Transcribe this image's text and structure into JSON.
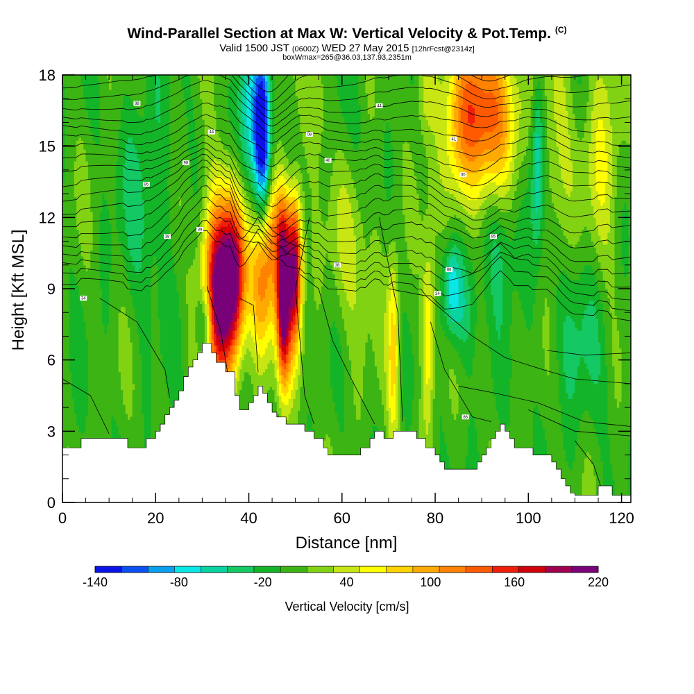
{
  "header": {
    "title": "Wind-Parallel Section at Max W: Vertical Velocity & Pot.Temp.",
    "copyright": "(C)",
    "subtitle_main": "Valid 1500 JST",
    "subtitle_z": "(0600Z)",
    "subtitle_date": "WED 27 May 2015",
    "subtitle_fcst": "[12hrFcst@2314z]",
    "subtitle2": "boxWmax=265@36.03,137.93,2351m"
  },
  "chart_data": {
    "type": "heatmap",
    "title": "Wind-Parallel Section at Max W: Vertical Velocity & Pot.Temp.",
    "xlabel": "Distance [nm]",
    "ylabel": "Height [Kft MSL]",
    "xlim": [
      0,
      122
    ],
    "ylim": [
      0,
      18
    ],
    "x_ticks": [
      0,
      20,
      40,
      60,
      80,
      100,
      120
    ],
    "y_ticks": [
      0,
      3,
      6,
      9,
      12,
      15,
      18
    ],
    "colorbar": {
      "label": "Vertical Velocity [cm/s]",
      "min": -140,
      "max": 220,
      "step": 20,
      "tick_labels": [
        -140,
        -80,
        -20,
        40,
        100,
        160,
        220
      ],
      "colors": [
        "#0a14e8",
        "#0a50f0",
        "#0aa0f0",
        "#0ae6e6",
        "#0ad2a0",
        "#14c864",
        "#14b428",
        "#3cb414",
        "#82d214",
        "#c8e614",
        "#ffff00",
        "#ffd200",
        "#ffaa00",
        "#ff8200",
        "#ff5a00",
        "#f01e0a",
        "#d2000a",
        "#a00050",
        "#780078"
      ]
    },
    "terrain": [
      [
        0,
        2.3
      ],
      [
        4,
        2.3
      ],
      [
        4,
        2.7
      ],
      [
        14,
        2.7
      ],
      [
        14,
        2.3
      ],
      [
        18,
        2.3
      ],
      [
        18,
        2.7
      ],
      [
        20,
        2.7
      ],
      [
        20,
        3.0
      ],
      [
        21,
        3.0
      ],
      [
        21,
        3.3
      ],
      [
        22,
        3.3
      ],
      [
        22,
        3.7
      ],
      [
        23,
        3.7
      ],
      [
        23,
        4.0
      ],
      [
        24,
        4.0
      ],
      [
        24,
        4.3
      ],
      [
        25,
        4.3
      ],
      [
        25,
        4.7
      ],
      [
        26,
        4.7
      ],
      [
        26,
        5.3
      ],
      [
        27,
        5.3
      ],
      [
        27,
        5.7
      ],
      [
        28,
        5.7
      ],
      [
        28,
        6.0
      ],
      [
        29,
        6.0
      ],
      [
        29,
        6.3
      ],
      [
        30,
        6.3
      ],
      [
        30,
        6.7
      ],
      [
        32,
        6.7
      ],
      [
        32,
        6.3
      ],
      [
        33,
        6.3
      ],
      [
        33,
        5.9
      ],
      [
        35,
        5.9
      ],
      [
        35,
        5.5
      ],
      [
        37,
        5.5
      ],
      [
        37,
        4.5
      ],
      [
        38,
        4.5
      ],
      [
        38,
        3.9
      ],
      [
        40,
        3.9
      ],
      [
        40,
        4.2
      ],
      [
        41,
        4.2
      ],
      [
        41,
        4.5
      ],
      [
        42,
        4.5
      ],
      [
        42,
        4.9
      ],
      [
        43,
        4.9
      ],
      [
        43,
        4.6
      ],
      [
        44,
        4.6
      ],
      [
        44,
        4.2
      ],
      [
        45,
        4.2
      ],
      [
        45,
        3.8
      ],
      [
        46,
        3.8
      ],
      [
        46,
        3.6
      ],
      [
        48,
        3.6
      ],
      [
        48,
        3.3
      ],
      [
        52,
        3.3
      ],
      [
        52,
        3.0
      ],
      [
        54,
        3.0
      ],
      [
        54,
        2.7
      ],
      [
        56,
        2.7
      ],
      [
        56,
        2.3
      ],
      [
        57,
        2.3
      ],
      [
        57,
        2.0
      ],
      [
        64,
        2.0
      ],
      [
        64,
        2.3
      ],
      [
        66,
        2.3
      ],
      [
        66,
        2.7
      ],
      [
        67,
        2.7
      ],
      [
        67,
        3.0
      ],
      [
        69,
        3.0
      ],
      [
        69,
        2.7
      ],
      [
        71,
        2.7
      ],
      [
        71,
        3.0
      ],
      [
        76,
        3.0
      ],
      [
        76,
        2.7
      ],
      [
        78,
        2.7
      ],
      [
        78,
        2.3
      ],
      [
        80,
        2.3
      ],
      [
        80,
        2.0
      ],
      [
        81,
        2.0
      ],
      [
        81,
        1.7
      ],
      [
        82,
        1.7
      ],
      [
        82,
        1.4
      ],
      [
        89,
        1.4
      ],
      [
        89,
        1.7
      ],
      [
        90,
        1.7
      ],
      [
        90,
        2.0
      ],
      [
        91,
        2.0
      ],
      [
        91,
        2.3
      ],
      [
        92,
        2.3
      ],
      [
        92,
        2.7
      ],
      [
        93,
        2.7
      ],
      [
        93,
        3.0
      ],
      [
        94,
        3.0
      ],
      [
        94,
        3.3
      ],
      [
        95,
        3.3
      ],
      [
        95,
        3.0
      ],
      [
        96,
        3.0
      ],
      [
        96,
        2.7
      ],
      [
        97,
        2.7
      ],
      [
        97,
        2.3
      ],
      [
        101,
        2.3
      ],
      [
        101,
        2.0
      ],
      [
        105,
        2.0
      ],
      [
        105,
        1.7
      ],
      [
        106,
        1.7
      ],
      [
        106,
        1.4
      ],
      [
        107,
        1.4
      ],
      [
        107,
        1.0
      ],
      [
        108,
        1.0
      ],
      [
        108,
        0.7
      ],
      [
        109,
        0.7
      ],
      [
        109,
        0.4
      ],
      [
        110,
        0.4
      ],
      [
        110,
        0.3
      ],
      [
        115,
        0.3
      ],
      [
        115,
        0.7
      ],
      [
        118,
        0.7
      ],
      [
        118,
        0.3
      ],
      [
        122,
        0.3
      ]
    ],
    "updrafts": [
      {
        "x": 33.5,
        "y": 9.0,
        "w": 220,
        "sx": 2.4,
        "sy": 2.8
      },
      {
        "x": 37.0,
        "y": 9.6,
        "w": 180,
        "sx": 1.8,
        "sy": 2.4
      },
      {
        "x": 43.0,
        "y": 9.0,
        "w": 120,
        "sx": 2.0,
        "sy": 2.3
      },
      {
        "x": 47.5,
        "y": 8.6,
        "w": 230,
        "sx": 1.1,
        "sy": 2.5
      },
      {
        "x": 50.0,
        "y": 9.8,
        "w": 200,
        "sx": 1.0,
        "sy": 2.2
      },
      {
        "x": 46.0,
        "y": 11.5,
        "w": 80,
        "sx": 2.5,
        "sy": 1.6
      },
      {
        "x": 71.0,
        "y": 6.5,
        "w": 80,
        "sx": 0.9,
        "sy": 2.8
      },
      {
        "x": 78.5,
        "y": 7.0,
        "w": 80,
        "sx": 1.0,
        "sy": 2.6
      },
      {
        "x": 91.0,
        "y": 16.5,
        "w": 150,
        "sx": 4.5,
        "sy": 2.4
      },
      {
        "x": 85.0,
        "y": 15.0,
        "w": 60,
        "sx": 2.5,
        "sy": 2.5
      },
      {
        "x": 78.0,
        "y": 17.5,
        "w": 50,
        "sx": 1.5,
        "sy": 1.5
      },
      {
        "x": 55.0,
        "y": 17.0,
        "w": 40,
        "sx": 2.0,
        "sy": 2.0
      },
      {
        "x": 62.0,
        "y": 11.0,
        "w": 40,
        "sx": 4.0,
        "sy": 3.0
      },
      {
        "x": 116.0,
        "y": 14.5,
        "w": 50,
        "sx": 3.0,
        "sy": 3.5
      },
      {
        "x": 106.0,
        "y": 14.0,
        "w": 40,
        "sx": 2.5,
        "sy": 4.0
      }
    ],
    "downdrafts": [
      {
        "x": 43.0,
        "y": 15.5,
        "w": -140,
        "sx": 1.2,
        "sy": 2.6
      },
      {
        "x": 40.0,
        "y": 15.5,
        "w": -70,
        "sx": 2.2,
        "sy": 2.8
      },
      {
        "x": 30.5,
        "y": 7.5,
        "w": -80,
        "sx": 1.2,
        "sy": 1.1
      },
      {
        "x": 83.5,
        "y": 9.0,
        "w": -80,
        "sx": 1.3,
        "sy": 1.3
      },
      {
        "x": 86.0,
        "y": 8.0,
        "w": -40,
        "sx": 2.0,
        "sy": 1.6
      },
      {
        "x": 102.0,
        "y": 14.5,
        "w": -80,
        "sx": 1.0,
        "sy": 2.5
      },
      {
        "x": 94.0,
        "y": 11.0,
        "w": -40,
        "sx": 3.0,
        "sy": 2.0
      },
      {
        "x": 18.0,
        "y": 13.0,
        "w": -30,
        "sx": 4.0,
        "sy": 3.5
      },
      {
        "x": 60.0,
        "y": 15.5,
        "w": -20,
        "sx": 4.0,
        "sy": 3.0
      },
      {
        "x": 110.0,
        "y": 7.5,
        "w": -30,
        "sx": 5.0,
        "sy": 3.0
      }
    ],
    "theta_contour_labels": [
      {
        "text": "98",
        "x": 16,
        "y": 16.8
      },
      {
        "text": "44",
        "x": 32,
        "y": 15.6
      },
      {
        "text": "98",
        "x": 26.5,
        "y": 14.3
      },
      {
        "text": "95",
        "x": 18,
        "y": 13.4
      },
      {
        "text": "38",
        "x": 22.5,
        "y": 11.2
      },
      {
        "text": "39",
        "x": 29.5,
        "y": 11.5
      },
      {
        "text": "34",
        "x": 4.5,
        "y": 8.6
      },
      {
        "text": "44",
        "x": 68,
        "y": 16.7
      },
      {
        "text": "08",
        "x": 53,
        "y": 15.5
      },
      {
        "text": "40",
        "x": 57,
        "y": 14.4
      },
      {
        "text": "41",
        "x": 84,
        "y": 15.3
      },
      {
        "text": "30",
        "x": 86,
        "y": 13.8
      },
      {
        "text": "38",
        "x": 59,
        "y": 10.0
      },
      {
        "text": "85",
        "x": 92.5,
        "y": 11.2
      },
      {
        "text": "86",
        "x": 83,
        "y": 9.8
      },
      {
        "text": "34",
        "x": 80.5,
        "y": 8.8
      },
      {
        "text": "86",
        "x": 86.5,
        "y": 3.6
      }
    ]
  }
}
